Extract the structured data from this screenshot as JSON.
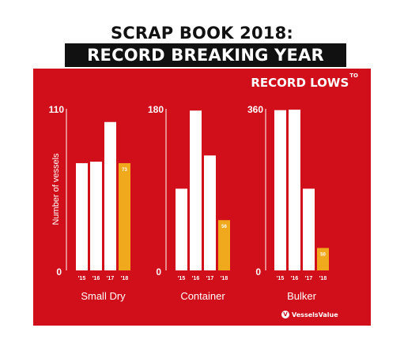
{
  "title_line1": "SCRAP BOOK 2018:",
  "title_line2": "RECORD BREAKING YEAR",
  "annotation": {
    "text": "RECORD LOWS",
    "superscript": "TO"
  },
  "ylabel": "Number of vessels",
  "brand": "VesselsValue",
  "colors": {
    "background": "#d10f1a",
    "bar": "#ffffff",
    "highlight": "#f0a81c",
    "axis": "#ffffff"
  },
  "chart_data": [
    {
      "type": "bar",
      "title": "Small Dry",
      "categories": [
        "'15",
        "'16",
        "'17",
        "'18"
      ],
      "values": [
        73,
        74,
        101,
        73
      ],
      "ylim": [
        0,
        110
      ],
      "ytick_labels": [
        "0",
        "110"
      ],
      "highlight_index": 3,
      "data_labels": [
        "",
        "",
        "",
        "73"
      ]
    },
    {
      "type": "bar",
      "title": "Container",
      "categories": [
        "'15",
        "'16",
        "'17",
        "'18"
      ],
      "values": [
        91,
        178,
        128,
        56
      ],
      "ylim": [
        0,
        180
      ],
      "ytick_labels": [
        "0",
        "180"
      ],
      "highlight_index": 3,
      "data_labels": [
        "",
        "",
        "",
        "56"
      ]
    },
    {
      "type": "bar",
      "title": "Bulker",
      "categories": [
        "'15",
        "'16",
        "'17",
        "'18"
      ],
      "values": [
        357,
        358,
        182,
        50
      ],
      "ylim": [
        0,
        360
      ],
      "ytick_labels": [
        "0",
        "360"
      ],
      "highlight_index": 3,
      "data_labels": [
        "",
        "",
        "",
        "50"
      ]
    }
  ]
}
